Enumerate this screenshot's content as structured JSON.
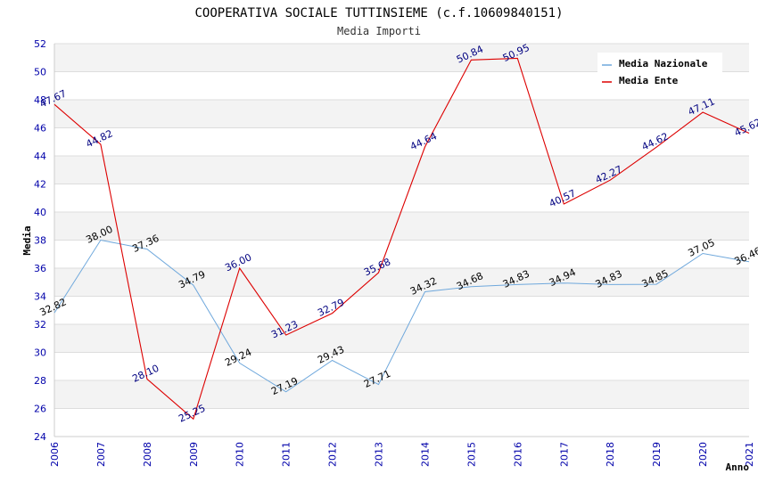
{
  "chart_data": {
    "type": "line",
    "title": "COOPERATIVA SOCIALE TUTTINSIEME (c.f.10609840151)",
    "subtitle": "Media Importi",
    "xlabel": "Anno",
    "ylabel": "Media",
    "ylim": [
      24,
      52
    ],
    "yticks": [
      24,
      26,
      28,
      30,
      32,
      34,
      36,
      38,
      40,
      42,
      44,
      46,
      48,
      50,
      52
    ],
    "x": [
      2006,
      2007,
      2008,
      2009,
      2010,
      2011,
      2012,
      2013,
      2014,
      2015,
      2016,
      2017,
      2018,
      2019,
      2020,
      2021
    ],
    "grid": true,
    "legend_position": "top-right",
    "series": [
      {
        "name": "Media Nazionale",
        "color": "#6fa8dc",
        "label_color": "#000000",
        "values": [
          32.82,
          38.0,
          37.36,
          34.79,
          29.24,
          27.19,
          29.43,
          27.71,
          34.32,
          34.68,
          34.83,
          34.94,
          34.83,
          34.85,
          37.05,
          36.46
        ],
        "labels": [
          "32.82",
          "38.00",
          "37.36",
          "34.79",
          "29.24",
          "27.19",
          "29.43",
          "27.71",
          "34.32",
          "34.68",
          "34.83",
          "34.94",
          "34.83",
          "34.85",
          "37.05",
          "36.46"
        ]
      },
      {
        "name": "Media Ente",
        "color": "#dd0000",
        "label_color": "#000080",
        "values": [
          47.67,
          44.82,
          28.1,
          25.25,
          36.0,
          31.23,
          32.79,
          35.68,
          44.64,
          50.84,
          50.95,
          40.57,
          42.27,
          44.62,
          47.11,
          45.62
        ],
        "labels": [
          "47.67",
          "44.82",
          "28.10",
          "25.25",
          "36.00",
          "31.23",
          "32.79",
          "35.68",
          "44.64",
          "50.84",
          "50.95",
          "40.57",
          "42.27",
          "44.62",
          "47.11",
          "45.62"
        ]
      }
    ]
  }
}
